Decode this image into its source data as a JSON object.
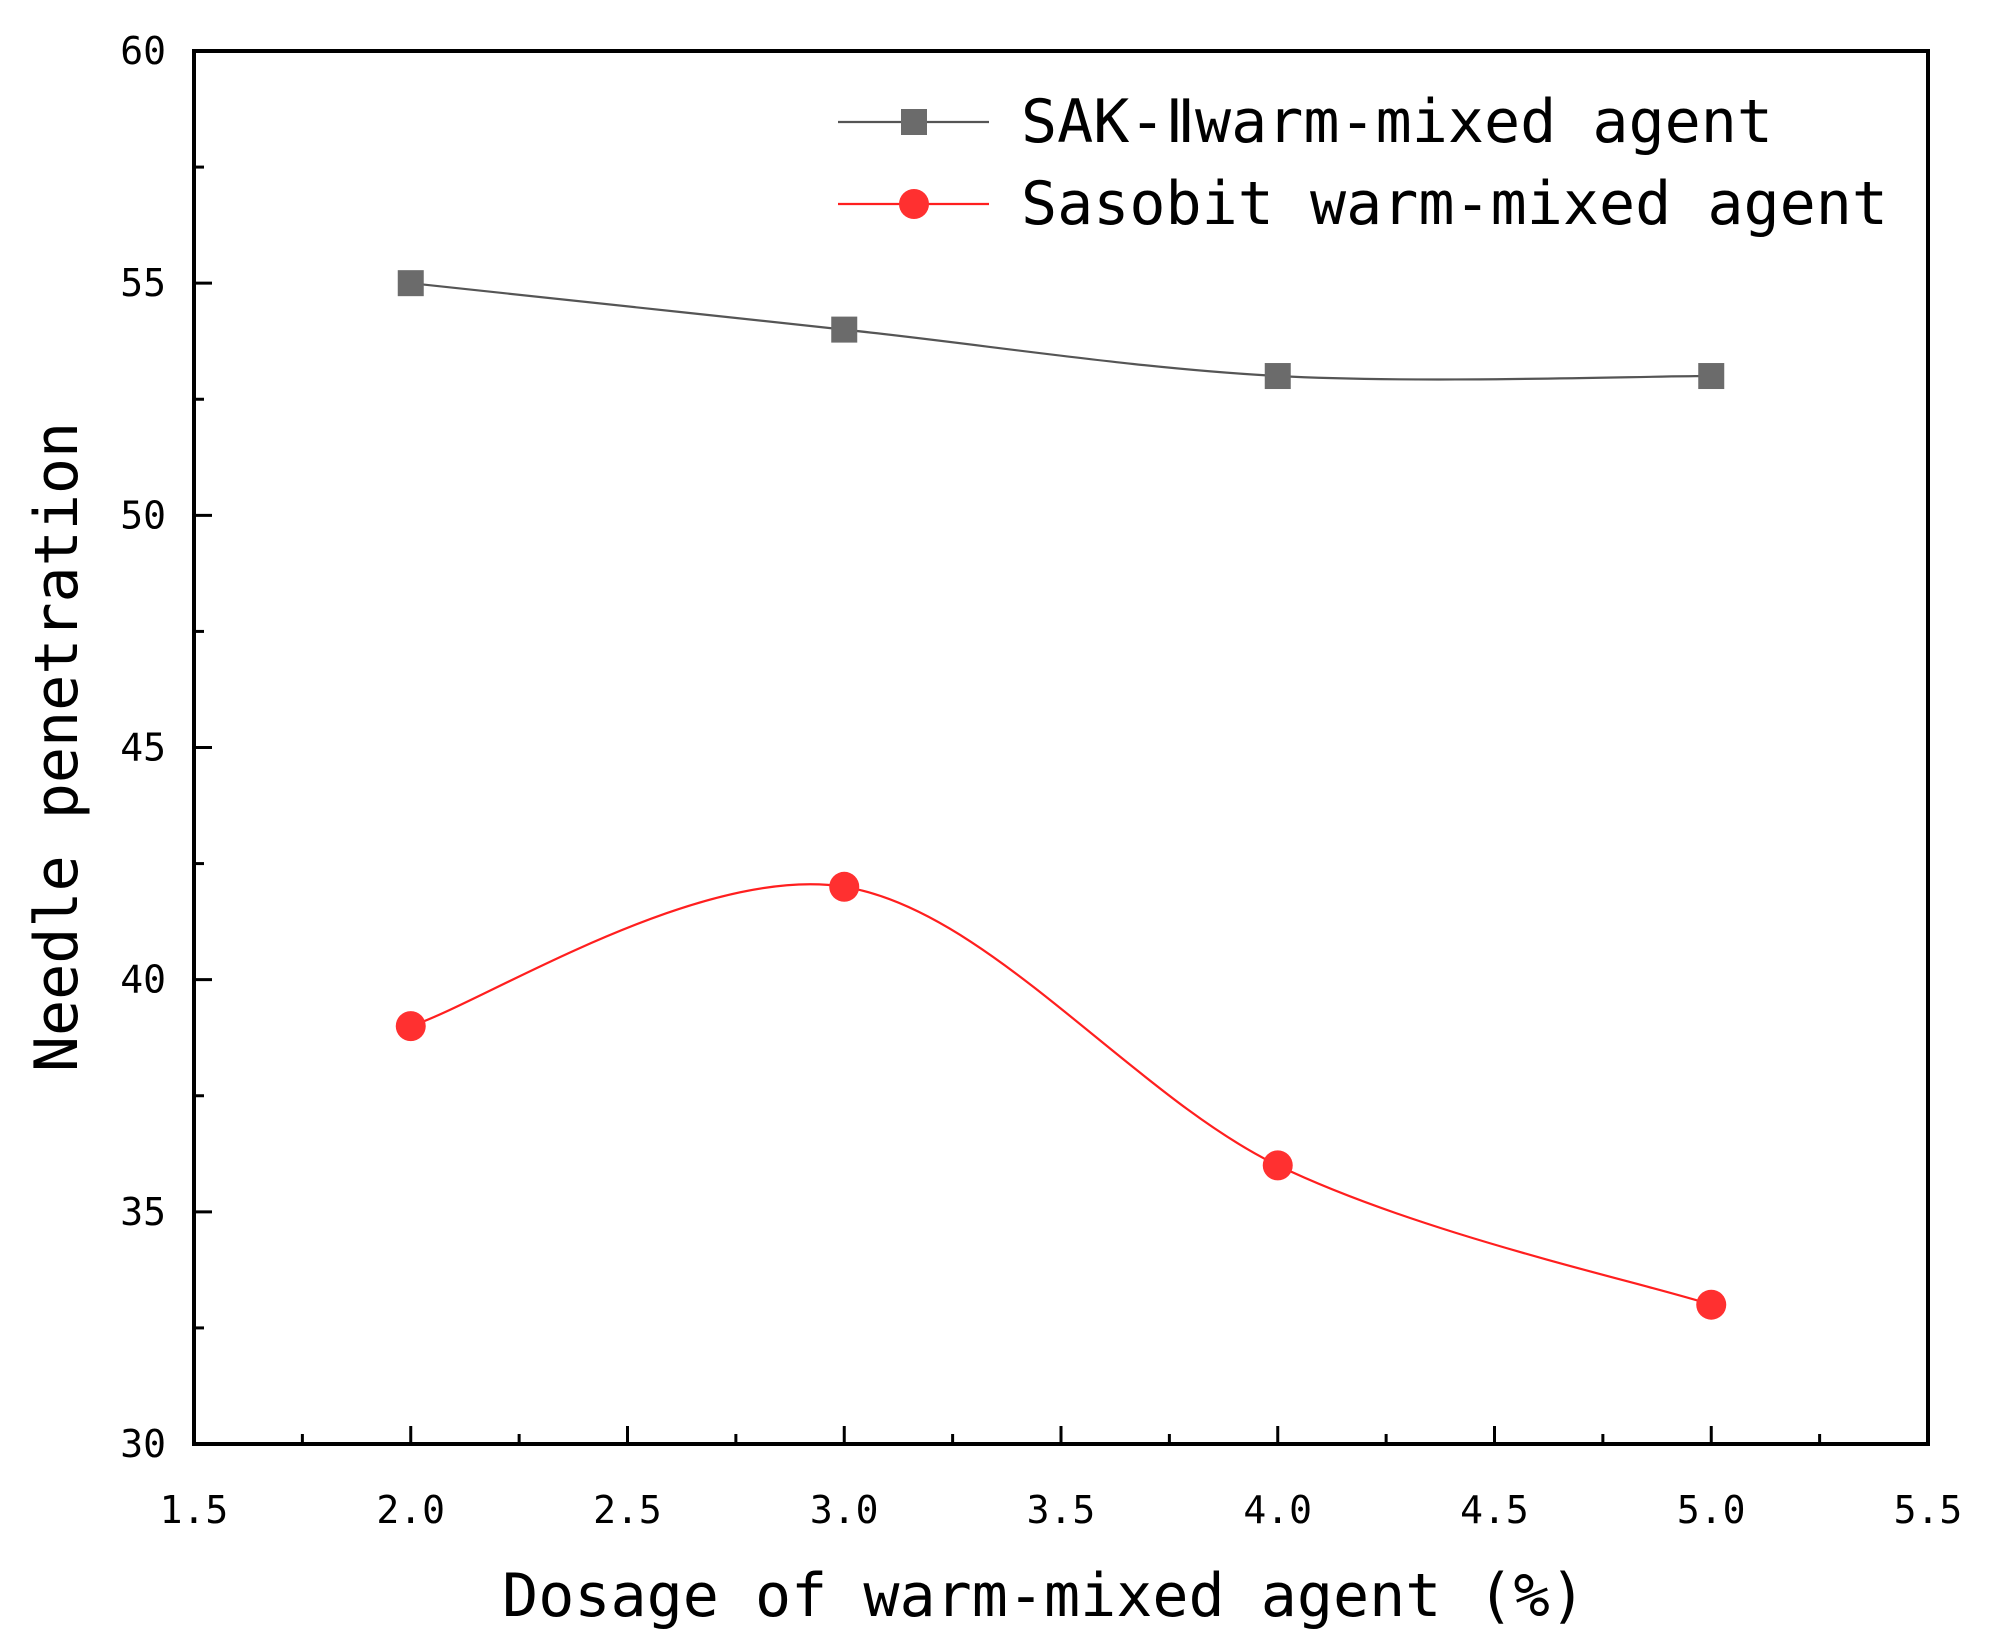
{
  "chart_data": {
    "type": "line",
    "title": "",
    "xlabel": "Dosage of warm-mixed agent (%)",
    "ylabel": "Needle penetration",
    "xlim": [
      1.5,
      5.5
    ],
    "ylim": [
      30,
      60
    ],
    "x_ticks": [
      1.5,
      2.0,
      2.5,
      3.0,
      3.5,
      4.0,
      4.5,
      5.0,
      5.5
    ],
    "x_tick_labels": [
      "1.5",
      "2.0",
      "2.5",
      "3.0",
      "3.5",
      "4.0",
      "4.5",
      "5.0",
      "5.5"
    ],
    "y_ticks": [
      30,
      35,
      40,
      45,
      50,
      55,
      60
    ],
    "y_tick_labels": [
      "30",
      "35",
      "40",
      "45",
      "50",
      "55",
      "60"
    ],
    "x": [
      2.0,
      3.0,
      4.0,
      5.0
    ],
    "series": [
      {
        "name": "SAK-Ⅱwarm-mixed agent",
        "values": [
          55,
          54,
          53,
          53
        ],
        "color": "#555555",
        "marker": "square",
        "marker_color": "#6b6b6b"
      },
      {
        "name": "Sasobit warm-mixed agent",
        "values": [
          39,
          42,
          36,
          33
        ],
        "color": "#ff1f1f",
        "marker": "circle",
        "marker_color": "#ff3030"
      }
    ],
    "legend": "top-right",
    "grid": false
  }
}
